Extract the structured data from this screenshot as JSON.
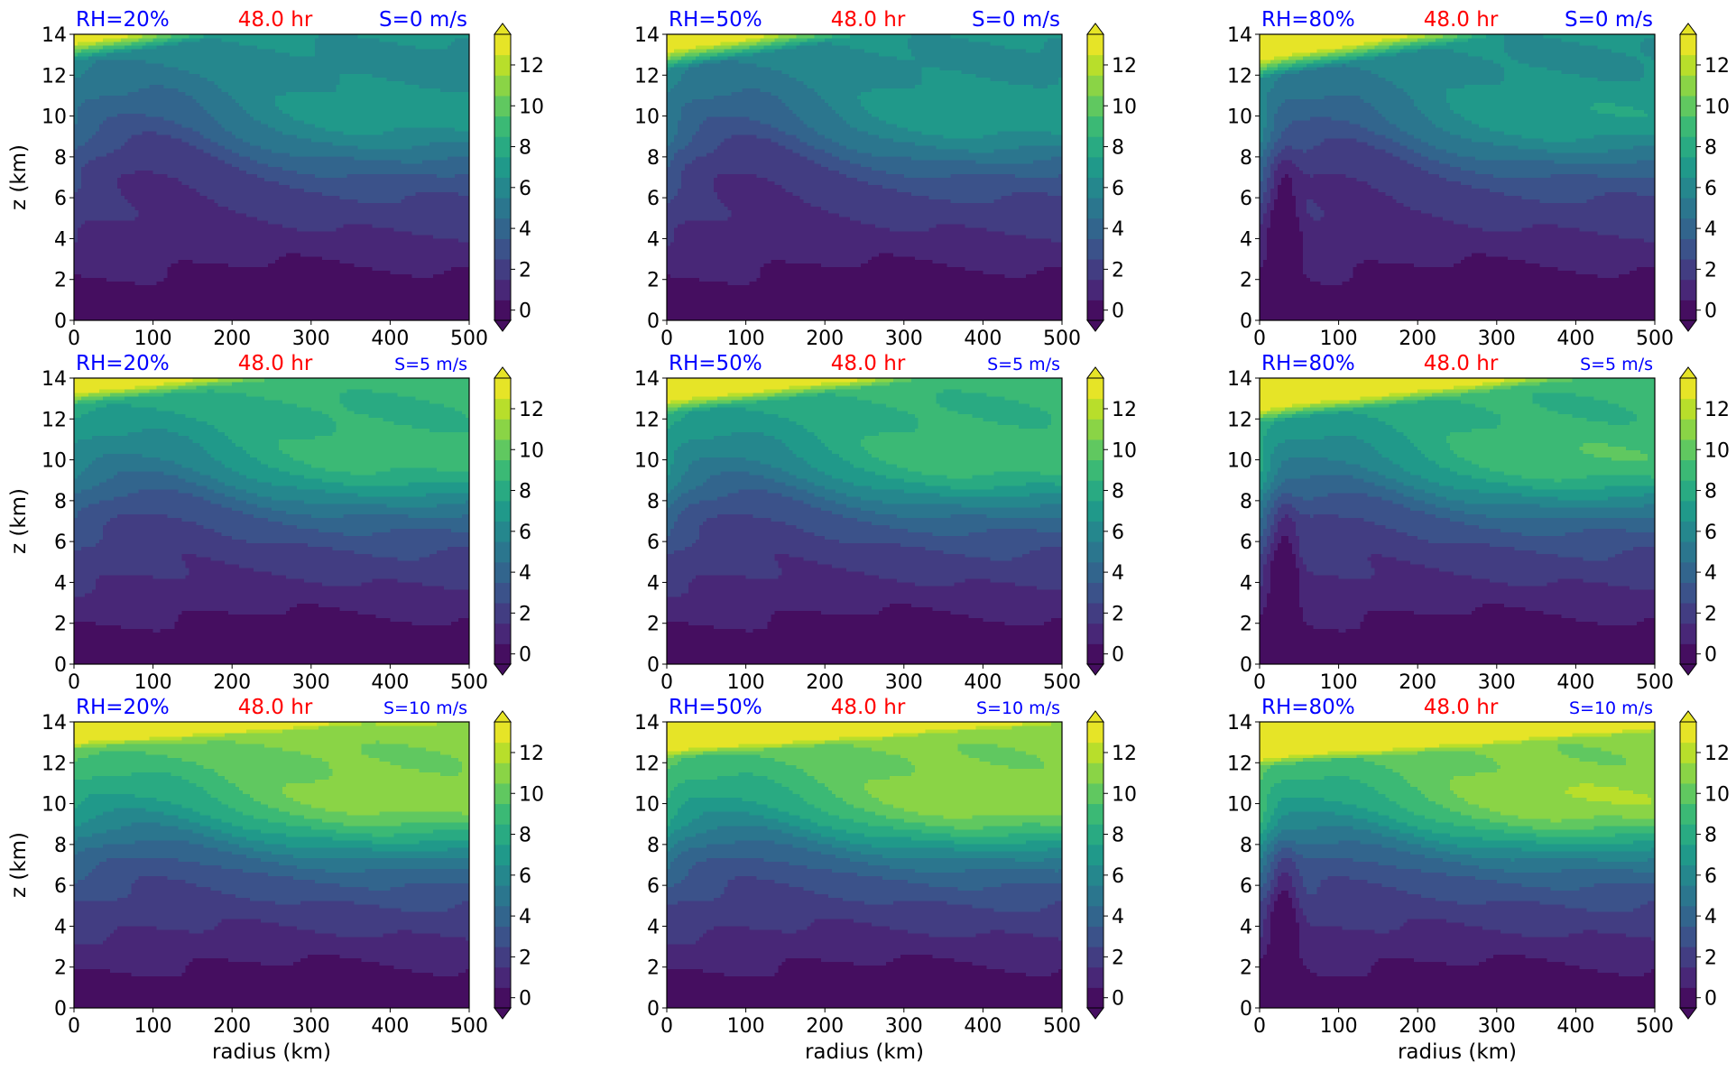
{
  "figure": {
    "time_label": "48.0 hr",
    "xlabel": "radius (km)",
    "ylabel": "z (km)"
  },
  "colors": {
    "rh_label": "#0000ff",
    "time_label": "#ff0000",
    "shear_label": "#0000ff",
    "axes_text": "#000000"
  },
  "chart_data": {
    "type": "heatmap",
    "colormap": "viridis",
    "colorbar_extend": "both",
    "x": {
      "label": "radius (km)",
      "range": [
        0,
        500
      ],
      "ticks": [
        0,
        100,
        200,
        300,
        400,
        500
      ]
    },
    "y": {
      "label": "z (km)",
      "range": [
        0,
        14
      ],
      "ticks": [
        0,
        2,
        4,
        6,
        8,
        10,
        12,
        14
      ]
    },
    "colorbar": {
      "levels_min": 0,
      "levels_max": 13,
      "level_step": 1,
      "ticks": [
        0,
        2,
        4,
        6,
        8,
        10,
        12
      ]
    },
    "panels": [
      {
        "rh": "RH=20%",
        "shear": "S=0 m/s",
        "rh_value": 20,
        "shear_value": 0
      },
      {
        "rh": "RH=50%",
        "shear": "S=0 m/s",
        "rh_value": 50,
        "shear_value": 0
      },
      {
        "rh": "RH=80%",
        "shear": "S=0 m/s",
        "rh_value": 80,
        "shear_value": 0
      },
      {
        "rh": "RH=20%",
        "shear": "S=5 m/s",
        "rh_value": 20,
        "shear_value": 5
      },
      {
        "rh": "RH=50%",
        "shear": "S=5 m/s",
        "rh_value": 50,
        "shear_value": 5
      },
      {
        "rh": "RH=80%",
        "shear": "S=5 m/s",
        "rh_value": 80,
        "shear_value": 5
      },
      {
        "rh": "RH=20%",
        "shear": "S=10 m/s",
        "rh_value": 20,
        "shear_value": 10
      },
      {
        "rh": "RH=50%",
        "shear": "S=10 m/s",
        "rh_value": 50,
        "shear_value": 10
      },
      {
        "rh": "RH=80%",
        "shear": "S=10 m/s",
        "rh_value": 80,
        "shear_value": 10
      }
    ]
  }
}
